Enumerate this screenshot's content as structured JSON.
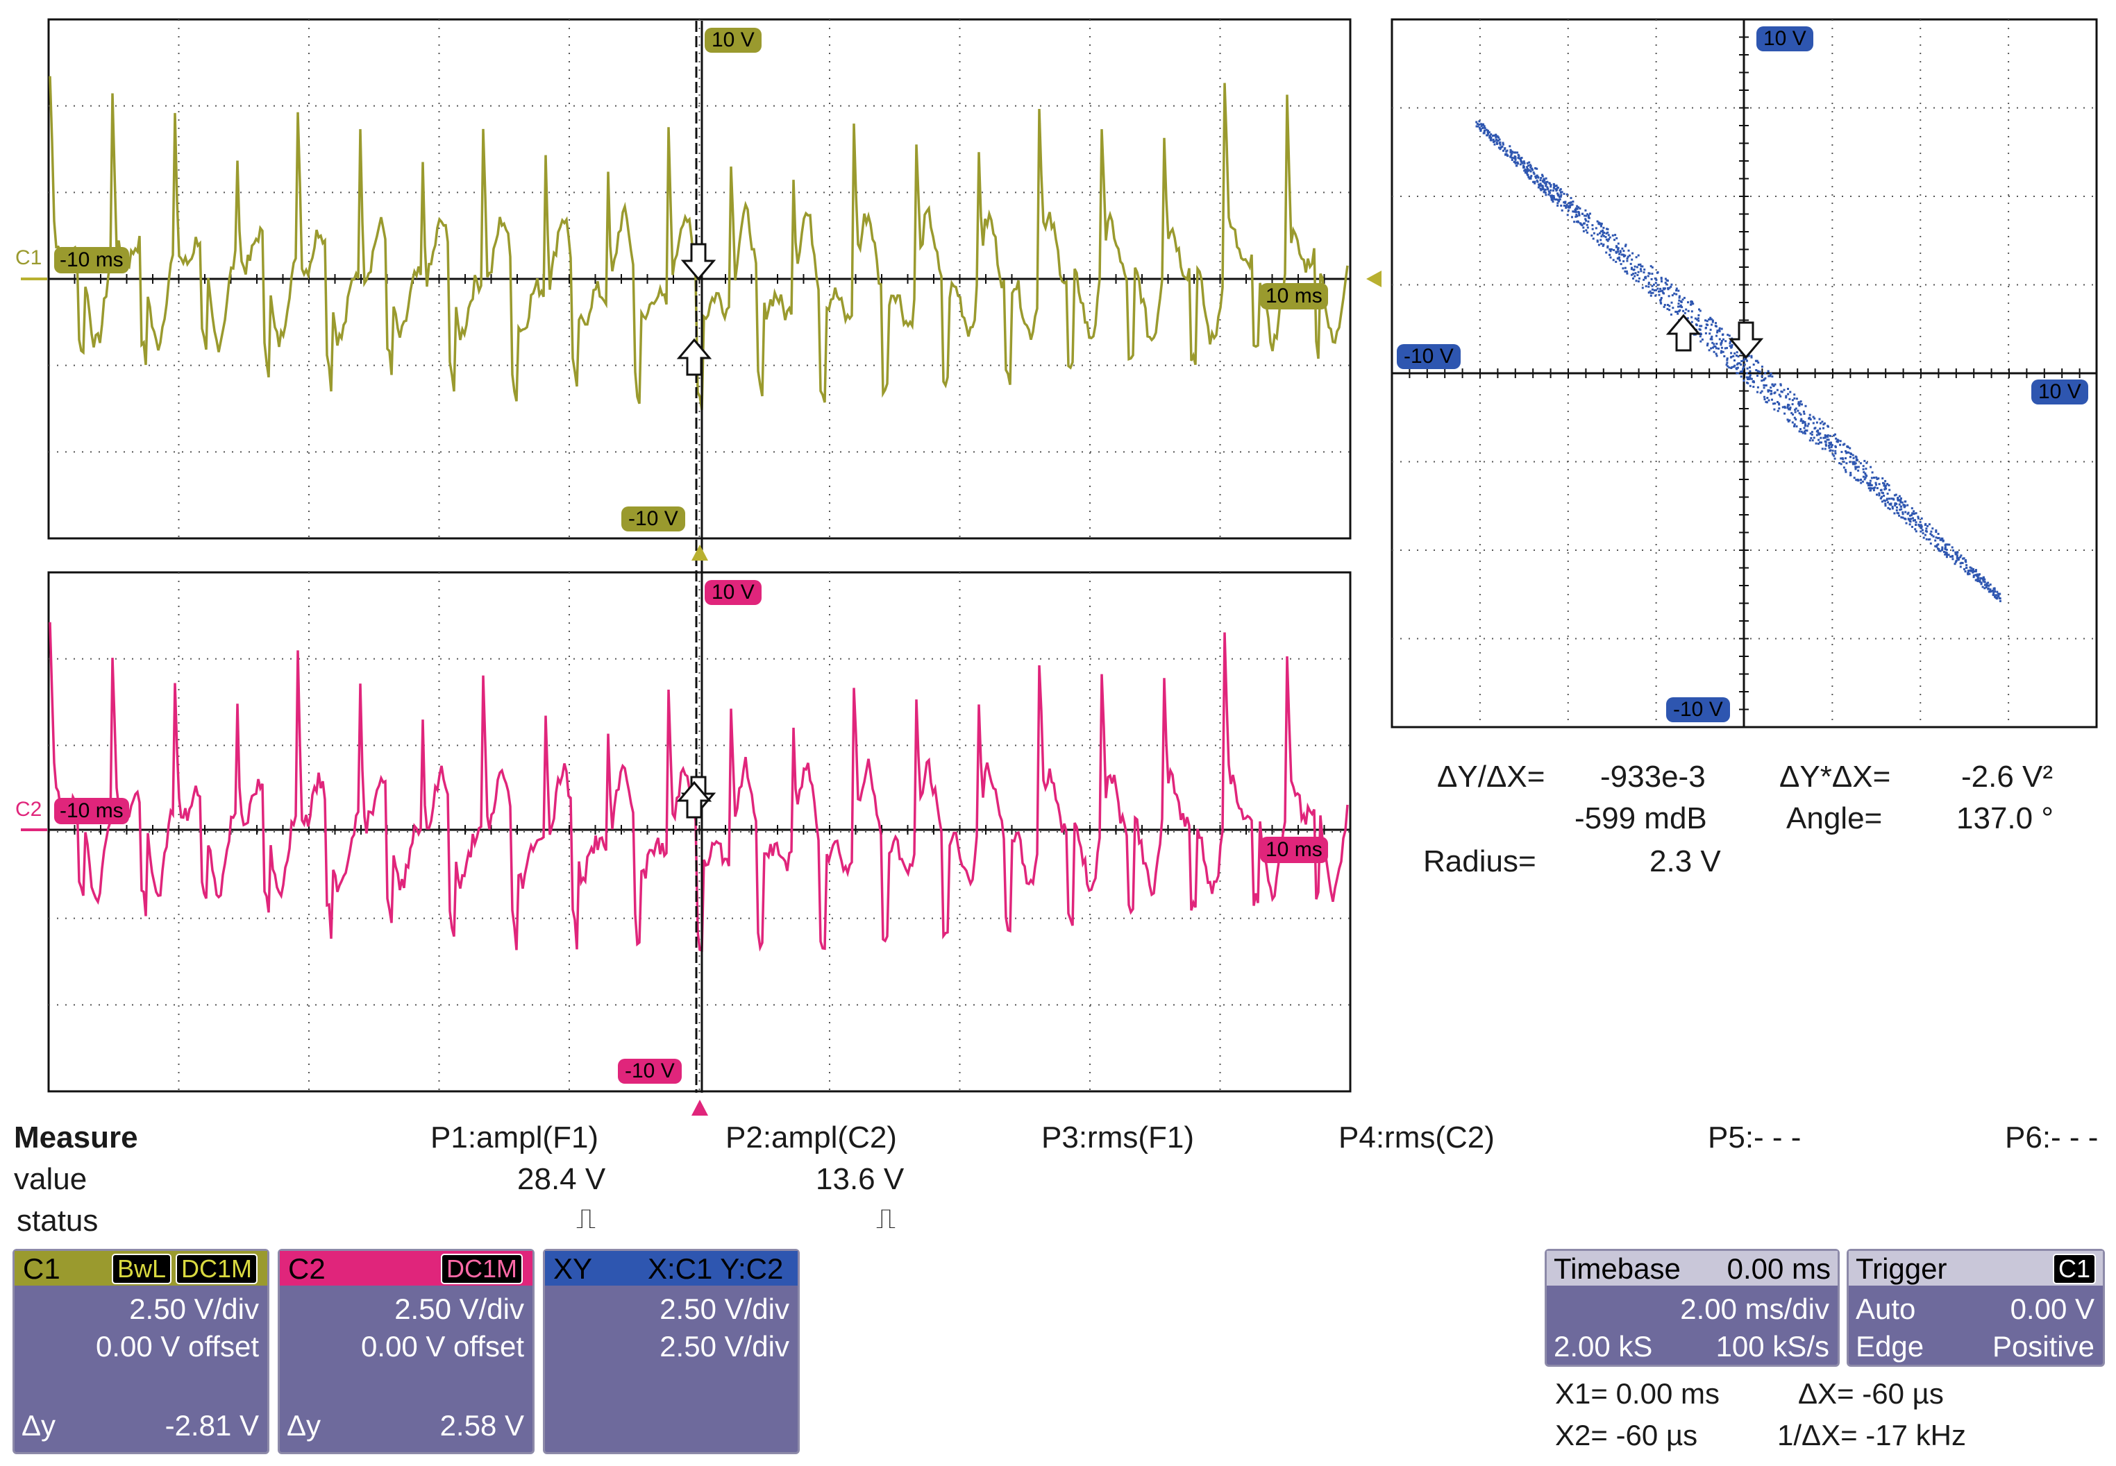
{
  "ch1": {
    "name": "C1",
    "color": "#9a9a2e",
    "cursor_left": "-10 ms",
    "cursor_right": "10 ms",
    "top_label": "10 V",
    "bottom_label": "-10 V"
  },
  "ch2": {
    "name": "C2",
    "color": "#e0257b",
    "cursor_left": "-10 ms",
    "cursor_right": "10 ms",
    "top_label": "10 V",
    "bottom_label": "-10 V"
  },
  "xy": {
    "color": "#2e56b0",
    "top_label": "10 V",
    "bottom_label": "-10 V",
    "left_label": "-10 V",
    "right_label": "10 V",
    "readout": {
      "dydx_label": "ΔY/ΔX=",
      "dydx_value": "-933e-3",
      "dydx_db": "-599 mdB",
      "dyx_label": "ΔY*ΔX=",
      "dyx_value": "-2.6 V²",
      "angle_label": "Angle=",
      "angle_value": "137.0 °",
      "radius_label": "Radius=",
      "radius_value": "2.3 V"
    }
  },
  "measure": {
    "title": "Measure",
    "row_value": "value",
    "row_status": "status",
    "params": [
      {
        "name": "P1:ampl(F1)",
        "value": "28.4 V",
        "status": "⎍"
      },
      {
        "name": "P2:ampl(C2)",
        "value": "13.6 V",
        "status": "⎍"
      },
      {
        "name": "P3:rms(F1)",
        "value": "",
        "status": ""
      },
      {
        "name": "P4:rms(C2)",
        "value": "",
        "status": ""
      },
      {
        "name": "P5:- - -",
        "value": "",
        "status": ""
      },
      {
        "name": "P6:- - -",
        "value": "",
        "status": ""
      }
    ]
  },
  "panels": {
    "c1": {
      "title": "C1",
      "tag1": "BwL",
      "tag2": "DC1M",
      "vdiv": "2.50 V/div",
      "offset": "0.00 V offset",
      "dy_label": "Δy",
      "dy_value": "-2.81 V"
    },
    "c2": {
      "title": "C2",
      "tag1": "DC1M",
      "vdiv": "2.50 V/div",
      "offset": "0.00 V offset",
      "dy_label": "Δy",
      "dy_value": "2.58 V"
    },
    "xy": {
      "title": "XY",
      "src": "X:C1 Y:C2",
      "xdiv": "2.50 V/div",
      "ydiv": "2.50 V/div"
    },
    "timebase": {
      "title": "Timebase",
      "delay": "0.00 ms",
      "tdiv": "2.00 ms/div",
      "samples": "2.00 kS",
      "rate": "100 kS/s"
    },
    "trigger": {
      "title": "Trigger",
      "src": "C1",
      "mode": "Auto",
      "level": "0.00 V",
      "type": "Edge",
      "slope": "Positive"
    }
  },
  "cursors": {
    "x1": "X1=  0.00 ms",
    "x2": "X2=    -60 µs",
    "dx": "ΔX=     -60 µs",
    "inv_dx": "1/ΔX=  -17 kHz"
  }
}
